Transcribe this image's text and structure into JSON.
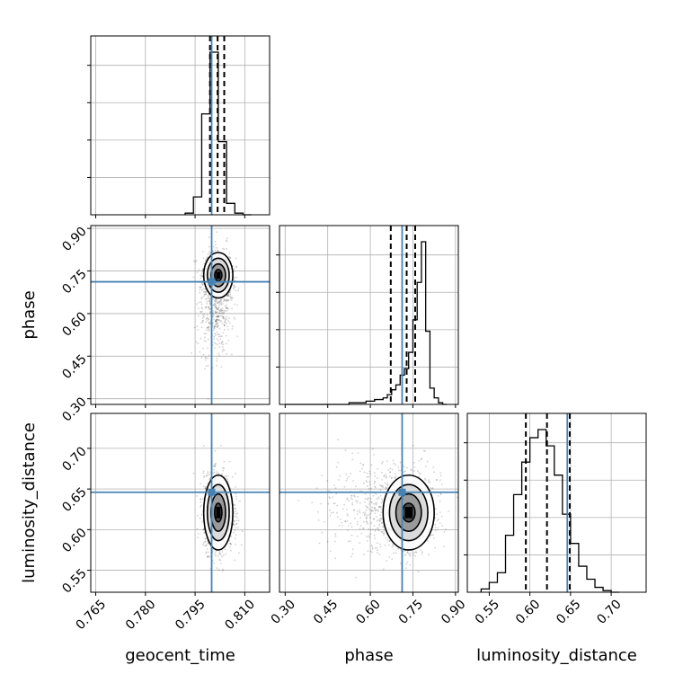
{
  "chart_data": {
    "type": "corner",
    "parameters": [
      "geocent_time",
      "phase",
      "luminosity_distance"
    ],
    "ranges": {
      "geocent_time": [
        0.7635,
        0.8175
      ],
      "phase": [
        0.28,
        0.91
      ],
      "luminosity_distance": [
        0.523,
        0.743
      ]
    },
    "ticks": {
      "geocent_time": [
        "0.765",
        "0.780",
        "0.795",
        "0.810"
      ],
      "phase": [
        "0.30",
        "0.45",
        "0.60",
        "0.75",
        "0.90"
      ],
      "luminosity_distance": [
        "0.55",
        "0.60",
        "0.65",
        "0.70"
      ]
    },
    "truths": {
      "geocent_time": 0.8,
      "phase": 0.712,
      "luminosity_distance": 0.646
    },
    "truth_color": "#4682b4",
    "quantiles": {
      "geocent_time": [
        0.7995,
        0.8018,
        0.8038
      ],
      "phase": [
        0.672,
        0.728,
        0.758
      ],
      "luminosity_distance": [
        0.595,
        0.621,
        0.649
      ]
    },
    "histograms": {
      "geocent_time": {
        "edges": [
          0.792,
          0.7945,
          0.797,
          0.7995,
          0.802,
          0.8045,
          0.807,
          0.8095,
          0.812
        ],
        "counts": [
          0.01,
          0.11,
          0.62,
          1.0,
          0.45,
          0.07,
          0.01,
          0.0
        ]
      },
      "phase": {
        "edges": [
          0.3,
          0.315,
          0.33,
          0.345,
          0.36,
          0.375,
          0.39,
          0.405,
          0.42,
          0.435,
          0.45,
          0.465,
          0.48,
          0.495,
          0.51,
          0.525,
          0.54,
          0.555,
          0.57,
          0.585,
          0.6,
          0.615,
          0.63,
          0.645,
          0.66,
          0.675,
          0.69,
          0.705,
          0.72,
          0.735,
          0.75,
          0.765,
          0.78,
          0.795,
          0.81,
          0.825,
          0.84,
          0.855,
          0.87
        ],
        "counts": [
          0.0,
          0.0,
          0.0,
          0.0,
          0.0,
          0.0,
          0.0,
          0.0,
          0.0,
          0.0,
          0.0,
          0.0,
          0.0,
          0.0,
          0.0,
          0.01,
          0.01,
          0.01,
          0.01,
          0.02,
          0.02,
          0.03,
          0.03,
          0.04,
          0.06,
          0.09,
          0.12,
          0.18,
          0.22,
          0.32,
          0.52,
          0.75,
          1.0,
          0.45,
          0.1,
          0.04,
          0.01,
          0.0
        ]
      },
      "luminosity_distance": {
        "edges": [
          0.54,
          0.55,
          0.56,
          0.57,
          0.58,
          0.59,
          0.6,
          0.61,
          0.62,
          0.63,
          0.64,
          0.65,
          0.66,
          0.67,
          0.68,
          0.69,
          0.7,
          0.71
        ],
        "counts": [
          0.02,
          0.06,
          0.12,
          0.35,
          0.6,
          0.8,
          0.95,
          1.0,
          0.9,
          0.72,
          0.48,
          0.3,
          0.16,
          0.08,
          0.03,
          0.01,
          0.0
        ]
      }
    },
    "pairs": [
      {
        "x": "geocent_time",
        "y": "phase",
        "center": [
          0.802,
          0.735
        ],
        "sigma": [
          0.0022,
          0.04
        ],
        "tail": [
          0.801,
          0.6,
          0.0025,
          0.08
        ]
      },
      {
        "x": "geocent_time",
        "y": "luminosity_distance",
        "center": [
          0.802,
          0.621
        ],
        "sigma": [
          0.0022,
          0.023
        ]
      },
      {
        "x": "phase",
        "y": "luminosity_distance",
        "center": [
          0.735,
          0.621
        ],
        "sigma": [
          0.045,
          0.023
        ],
        "tail": [
          0.62,
          0.625,
          0.09,
          0.03
        ]
      }
    ],
    "grid": true,
    "xlabel_row": [
      "geocent_time",
      "phase",
      "luminosity_distance"
    ],
    "ylabel_col": [
      "phase",
      "luminosity_distance"
    ]
  }
}
